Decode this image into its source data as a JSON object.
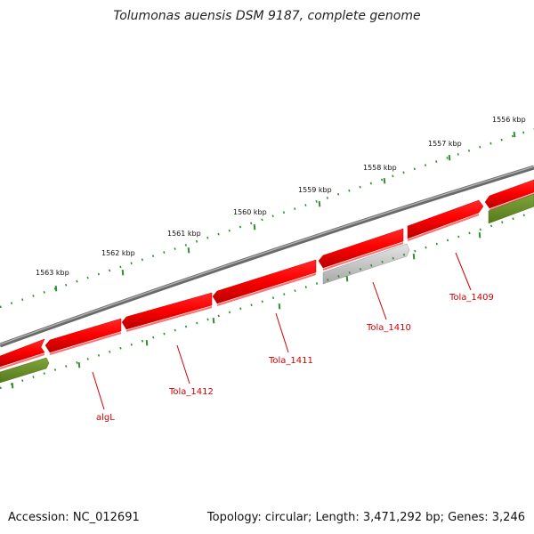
{
  "title": "Tolumonas auensis DSM 9187, complete genome",
  "footer": {
    "accession": "Accession: NC_012691",
    "summary": "Topology: circular; Length: 3,471,292 bp; Genes: 3,246"
  },
  "ruler_labels": [
    "1556 kbp",
    "1557 kbp",
    "1558 kbp",
    "1559 kbp",
    "1560 kbp",
    "1561 kbp",
    "1562 kbp",
    "1563 kbp"
  ],
  "genes": [
    "Tola_1409",
    "Tola_1410",
    "Tola_1411",
    "Tola_1412",
    "algL"
  ],
  "colors": {
    "cds": "#ff0000",
    "cds_dark": "#cc0000",
    "pseudo": "#c8c8c8",
    "other_strand": "#6b8e23",
    "backbone": "#888888",
    "ticks": "#228b22",
    "labels": "#d10000"
  }
}
